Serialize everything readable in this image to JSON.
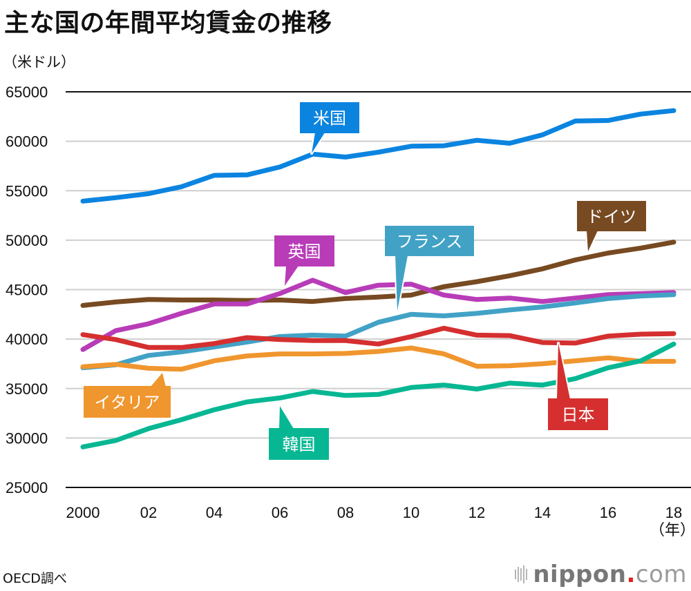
{
  "title": "主な国の年間平均賃金の推移",
  "unit_label": "（米ドル）",
  "source": "OECD調べ",
  "logo": {
    "name": "nippon",
    "dot": ".",
    "suffix": "com"
  },
  "chart_data": {
    "type": "line",
    "title": "主な国の年間平均賃金の推移",
    "ylabel": "（米ドル）",
    "xlabel": "（年）",
    "ylim": [
      25000,
      65000
    ],
    "yticks": [
      25000,
      30000,
      35000,
      40000,
      45000,
      50000,
      55000,
      60000,
      65000
    ],
    "ytick_labels": [
      "25000",
      "30000",
      "35000",
      "40000",
      "45000",
      "50000",
      "55000",
      "60000",
      "65000"
    ],
    "x": [
      2000,
      2001,
      2002,
      2003,
      2004,
      2005,
      2006,
      2007,
      2008,
      2009,
      2010,
      2011,
      2012,
      2013,
      2014,
      2015,
      2016,
      2017,
      2018
    ],
    "xticks": [
      2000,
      2002,
      2004,
      2006,
      2008,
      2010,
      2012,
      2014,
      2016,
      2018
    ],
    "xtick_labels": [
      "2000",
      "02",
      "04",
      "06",
      "08",
      "10",
      "12",
      "14",
      "16",
      "18"
    ],
    "x_unit_label": "（年）",
    "grid": true,
    "legend": "inline-callouts",
    "series": [
      {
        "name": "米国",
        "color": "#0b84e0",
        "values": [
          53950,
          54300,
          54700,
          55400,
          56550,
          56600,
          57400,
          58700,
          58400,
          58900,
          59500,
          59550,
          60100,
          59800,
          60650,
          62050,
          62100,
          62750,
          63100
        ],
        "callout_year": 2007,
        "callout_pos": "above"
      },
      {
        "name": "ドイツ",
        "color": "#774a22",
        "values": [
          43400,
          43750,
          44000,
          43950,
          43950,
          43900,
          43950,
          43800,
          44100,
          44250,
          44450,
          45300,
          45800,
          46400,
          47100,
          48000,
          48700,
          49200,
          49800
        ],
        "callout_year": 2015,
        "callout_pos": "above"
      },
      {
        "name": "英国",
        "color": "#b83cb8",
        "values": [
          38950,
          40850,
          41550,
          42600,
          43550,
          43550,
          44600,
          45950,
          44700,
          45450,
          45550,
          44450,
          44000,
          44150,
          43800,
          44150,
          44500,
          44600,
          44700
        ],
        "callout_year": 2006,
        "callout_pos": "above"
      },
      {
        "name": "フランス",
        "color": "#41a2c6",
        "values": [
          37100,
          37400,
          38350,
          38700,
          39200,
          39700,
          40250,
          40400,
          40300,
          41700,
          42500,
          42350,
          42600,
          42950,
          43250,
          43650,
          44100,
          44350,
          44500
        ],
        "callout_year": 2009.6,
        "callout_pos": "above"
      },
      {
        "name": "日本",
        "color": "#d52f2f",
        "values": [
          40450,
          39950,
          39150,
          39150,
          39550,
          40150,
          39950,
          39850,
          39850,
          39500,
          40250,
          41100,
          40400,
          40350,
          39650,
          39600,
          40300,
          40500,
          40550
        ],
        "callout_year": 14.5,
        "callout_pos": "below"
      },
      {
        "name": "イタリア",
        "color": "#f0962e",
        "values": [
          37200,
          37450,
          37050,
          36950,
          37800,
          38300,
          38500,
          38500,
          38550,
          38750,
          39100,
          38500,
          37250,
          37300,
          37500,
          37800,
          38100,
          37750,
          37750
        ],
        "callout_year": 2002.4,
        "callout_pos": "below"
      },
      {
        "name": "韓国",
        "color": "#07b793",
        "values": [
          29100,
          29750,
          30950,
          31850,
          32850,
          33650,
          34050,
          34700,
          34300,
          34400,
          35100,
          35350,
          34950,
          35550,
          35350,
          36000,
          37100,
          37800,
          39500
        ],
        "callout_year": 2006,
        "callout_pos": "below"
      }
    ]
  }
}
